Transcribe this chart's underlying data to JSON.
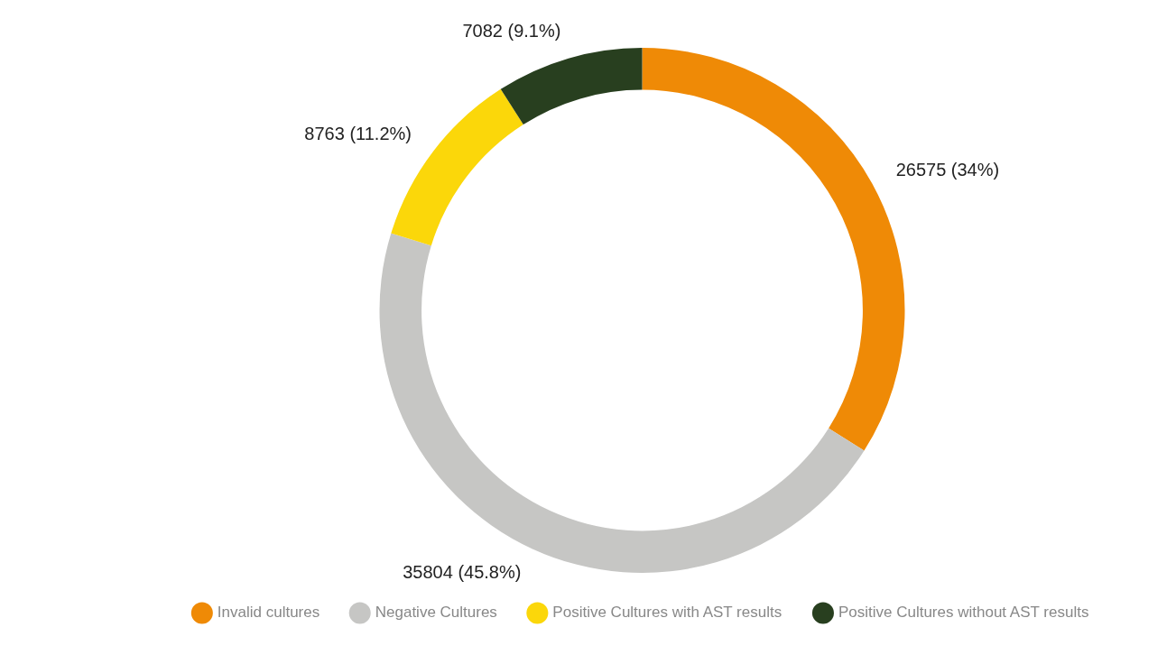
{
  "chart_data": {
    "type": "donut",
    "categories": [
      "Invalid cultures",
      "Negative Cultures",
      "Positive Cultures with AST results",
      "Positive Cultures without AST results"
    ],
    "values": [
      26575,
      35804,
      8763,
      7082
    ],
    "colors": [
      "#ef8a06",
      "#c6c6c4",
      "#fbd70a",
      "#283f1f"
    ],
    "value_labels": [
      "26575 (34%)",
      "35804 (45.8%)",
      "8763 (11.2%)",
      "7082 (9.1%)"
    ],
    "legend": "bottom"
  }
}
